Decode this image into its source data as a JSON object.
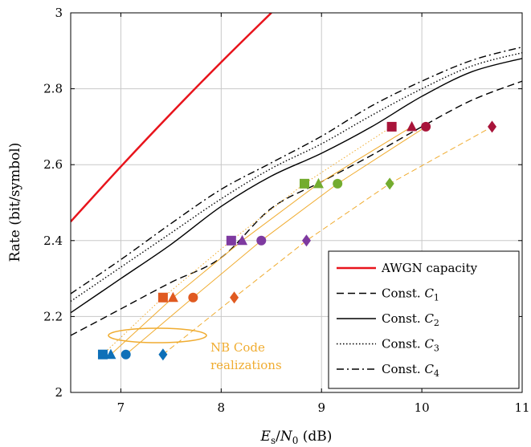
{
  "chart_data": {
    "type": "line",
    "xlabel": "E_s/N_0 (dB)",
    "ylabel": "Rate (bit/symbol)",
    "xlim": [
      6.5,
      11
    ],
    "ylim": [
      2,
      3
    ],
    "xticks": [
      7,
      8,
      9,
      10,
      11
    ],
    "yticks": [
      2,
      2.2,
      2.4,
      2.6,
      2.8,
      3
    ],
    "xtick_labels": [
      "7",
      "8",
      "9",
      "10",
      "11"
    ],
    "ytick_labels": [
      "2",
      "2.2",
      "2.4",
      "2.6",
      "2.8",
      "3"
    ],
    "grid": true,
    "legend_position": "bottom-right",
    "series": [
      {
        "name": "AWGN capacity",
        "style": "solid",
        "color": "#e8141c",
        "width": 2.5,
        "x": [
          6.5,
          7.0,
          7.5,
          8.0,
          8.5
        ],
        "y": [
          2.45,
          2.595,
          2.735,
          2.87,
          3.0
        ]
      },
      {
        "name": "Const. C_1",
        "style": "dashed",
        "color": "#000000",
        "width": 1.4,
        "x": [
          6.5,
          7.0,
          7.5,
          8.0,
          8.5,
          9.0,
          9.5,
          10.0,
          10.5,
          11.0
        ],
        "y": [
          2.15,
          2.22,
          2.29,
          2.355,
          2.485,
          2.555,
          2.625,
          2.7,
          2.77,
          2.82
        ]
      },
      {
        "name": "Const. C_2",
        "style": "solid",
        "color": "#000000",
        "width": 1.4,
        "x": [
          6.5,
          7.0,
          7.5,
          8.0,
          8.5,
          9.0,
          9.5,
          10.0,
          10.5,
          11.0
        ],
        "y": [
          2.21,
          2.3,
          2.39,
          2.49,
          2.57,
          2.63,
          2.7,
          2.78,
          2.845,
          2.88
        ]
      },
      {
        "name": "Const. C_3",
        "style": "dotted",
        "color": "#000000",
        "width": 1.4,
        "x": [
          6.5,
          7.0,
          7.5,
          8.0,
          8.5,
          9.0,
          9.5,
          10.0,
          10.5,
          11.0
        ],
        "y": [
          2.24,
          2.33,
          2.42,
          2.51,
          2.59,
          2.655,
          2.73,
          2.8,
          2.86,
          2.895
        ]
      },
      {
        "name": "Const. C_4",
        "style": "dashdot",
        "color": "#000000",
        "width": 1.4,
        "x": [
          6.5,
          7.0,
          7.5,
          8.0,
          8.5,
          9.0,
          9.5,
          10.0,
          10.5,
          11.0
        ],
        "y": [
          2.26,
          2.35,
          2.445,
          2.535,
          2.605,
          2.675,
          2.755,
          2.82,
          2.875,
          2.91
        ]
      }
    ],
    "markers": [
      {
        "rate": 2.1,
        "color": "#0e70b8",
        "points": [
          {
            "shape": "square",
            "x": 6.82
          },
          {
            "shape": "triangle",
            "x": 6.9
          },
          {
            "shape": "circle",
            "x": 7.05
          },
          {
            "shape": "diamond",
            "x": 7.42
          }
        ]
      },
      {
        "rate": 2.25,
        "color": "#e05a20",
        "points": [
          {
            "shape": "square",
            "x": 7.42
          },
          {
            "shape": "triangle",
            "x": 7.52
          },
          {
            "shape": "circle",
            "x": 7.72
          },
          {
            "shape": "diamond",
            "x": 8.13
          }
        ]
      },
      {
        "rate": 2.4,
        "color": "#7e3aa0",
        "points": [
          {
            "shape": "square",
            "x": 8.1
          },
          {
            "shape": "triangle",
            "x": 8.21
          },
          {
            "shape": "circle",
            "x": 8.4
          },
          {
            "shape": "diamond",
            "x": 8.85
          }
        ]
      },
      {
        "rate": 2.55,
        "color": "#73ac2f",
        "points": [
          {
            "shape": "square",
            "x": 8.83
          },
          {
            "shape": "triangle",
            "x": 8.97
          },
          {
            "shape": "circle",
            "x": 9.16
          },
          {
            "shape": "diamond",
            "x": 9.68
          }
        ]
      },
      {
        "rate": 2.7,
        "color": "#a8143a",
        "points": [
          {
            "shape": "square",
            "x": 9.7
          },
          {
            "shape": "triangle",
            "x": 9.9
          },
          {
            "shape": "circle",
            "x": 10.04
          },
          {
            "shape": "diamond",
            "x": 10.7
          }
        ]
      }
    ],
    "connector_color": "#f0ac30",
    "annotation": {
      "lines": [
        "NB Code",
        "realizations"
      ],
      "color": "#f0ac30"
    }
  },
  "legend": {
    "items": [
      {
        "label": "AWGN capacity",
        "base": "AWGN capacity",
        "sub": ""
      },
      {
        "label": "Const. C_1",
        "base": "Const. ",
        "sub": "1"
      },
      {
        "label": "Const. C_2",
        "base": "Const. ",
        "sub": "2"
      },
      {
        "label": "Const. C_3",
        "base": "Const. ",
        "sub": "3"
      },
      {
        "label": "Const. C_4",
        "base": "Const. ",
        "sub": "4"
      }
    ]
  }
}
